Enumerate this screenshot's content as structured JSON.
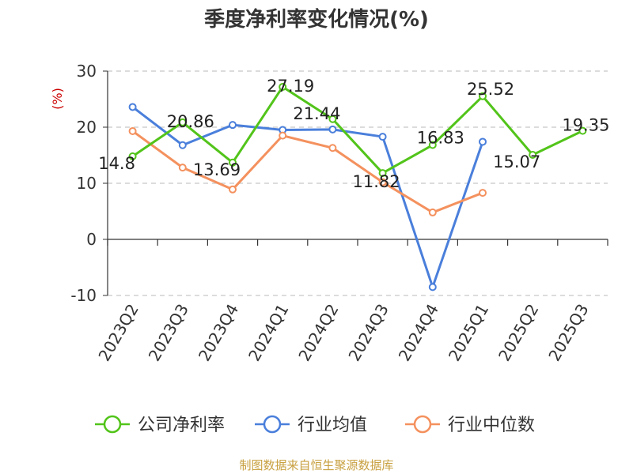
{
  "chart_data": {
    "type": "line",
    "title": "季度净利率变化情况(%)",
    "ylabel": "(%)",
    "categories": [
      "2023Q2",
      "2023Q3",
      "2023Q4",
      "2024Q1",
      "2024Q2",
      "2024Q3",
      "2024Q4",
      "2025Q1",
      "2025Q2",
      "2025Q3"
    ],
    "ylim": [
      -10,
      30
    ],
    "yticks": [
      -10,
      0,
      10,
      20,
      30
    ],
    "grid": true,
    "legend_position": "bottom",
    "series": [
      {
        "name": "公司净利率",
        "color": "#52c41a",
        "values": [
          14.8,
          20.86,
          13.69,
          27.19,
          21.44,
          11.82,
          16.83,
          25.52,
          15.07,
          19.35
        ],
        "labels": [
          "14.8",
          "20.86",
          "13.69",
          "27.19",
          "21.44",
          "11.82",
          "16.83",
          "25.52",
          "15.07",
          "19.35"
        ]
      },
      {
        "name": "行业均值",
        "color": "#4a7fdb",
        "values": [
          23.6,
          16.8,
          20.4,
          19.5,
          19.6,
          18.3,
          -8.5,
          17.4,
          null,
          null
        ]
      },
      {
        "name": "行业中位数",
        "color": "#f4915e",
        "values": [
          19.3,
          12.8,
          8.9,
          18.5,
          16.3,
          10.2,
          4.8,
          8.3,
          null,
          null
        ]
      }
    ]
  },
  "footer": {
    "source": "制图数据来自恒生聚源数据库"
  }
}
